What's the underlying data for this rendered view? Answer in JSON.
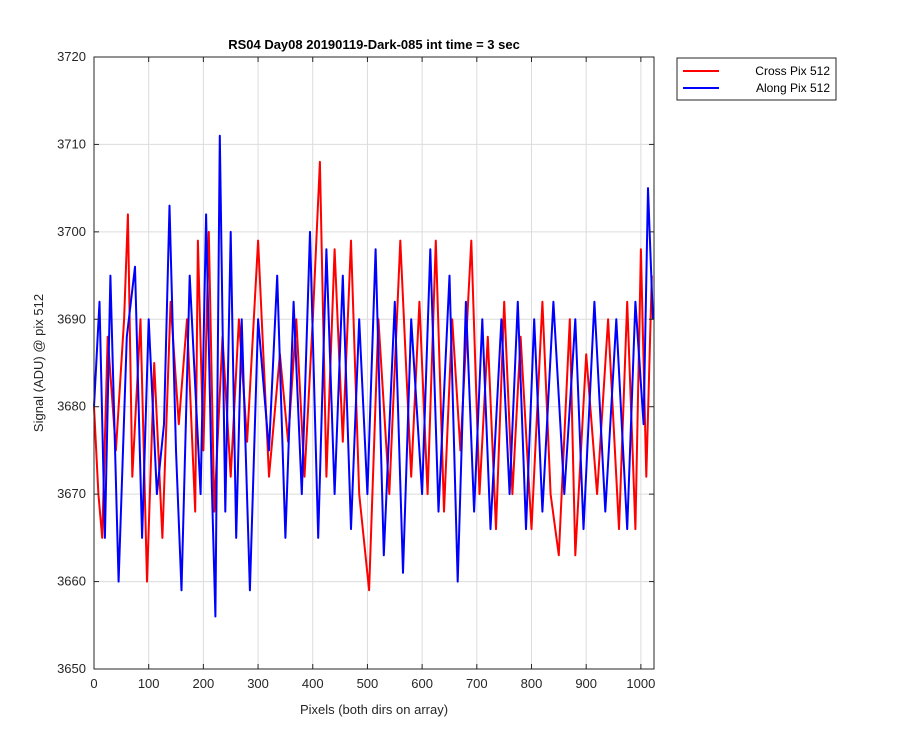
{
  "chart_data": {
    "type": "line",
    "title": "RS04 Day08 20190119-Dark-085 int time = 3 sec",
    "xlabel": "Pixels (both dirs on array)",
    "ylabel": "Signal (ADU) @ pix 512",
    "xlim": [
      0,
      1024
    ],
    "ylim": [
      3650,
      3720
    ],
    "xticks": [
      0,
      100,
      200,
      300,
      400,
      500,
      600,
      700,
      800,
      900,
      1000
    ],
    "yticks": [
      3650,
      3660,
      3670,
      3680,
      3690,
      3700,
      3710,
      3720
    ],
    "grid": true,
    "legend_position": "outside-top-right",
    "series": [
      {
        "name": "Cross Pix 512",
        "color": "#ff0000",
        "x": [
          0,
          8,
          15,
          25,
          40,
          55,
          62,
          70,
          85,
          97,
          110,
          125,
          140,
          155,
          170,
          185,
          190,
          200,
          210,
          220,
          235,
          250,
          265,
          280,
          300,
          320,
          340,
          355,
          370,
          385,
          400,
          413,
          425,
          440,
          455,
          470,
          485,
          503,
          520,
          540,
          560,
          580,
          595,
          610,
          625,
          640,
          655,
          670,
          690,
          705,
          720,
          735,
          750,
          765,
          780,
          800,
          820,
          835,
          850,
          870,
          880,
          900,
          920,
          940,
          960,
          975,
          990,
          1000,
          1010,
          1020
        ],
        "y": [
          3680,
          3670,
          3665,
          3688,
          3675,
          3690,
          3702,
          3672,
          3690,
          3660,
          3685,
          3665,
          3692,
          3678,
          3690,
          3668,
          3699,
          3675,
          3700,
          3668,
          3688,
          3672,
          3690,
          3676,
          3699,
          3672,
          3686,
          3676,
          3690,
          3672,
          3690,
          3708,
          3672,
          3698,
          3676,
          3699,
          3670,
          3659,
          3690,
          3670,
          3699,
          3672,
          3692,
          3670,
          3699,
          3668,
          3690,
          3675,
          3699,
          3670,
          3688,
          3666,
          3692,
          3670,
          3688,
          3666,
          3692,
          3670,
          3663,
          3690,
          3663,
          3686,
          3670,
          3690,
          3666,
          3692,
          3666,
          3698,
          3672,
          3695
        ]
      },
      {
        "name": "Along Pix 512",
        "color": "#0000ff",
        "x": [
          0,
          10,
          20,
          30,
          45,
          60,
          75,
          88,
          100,
          115,
          128,
          138,
          150,
          160,
          175,
          195,
          205,
          215,
          222,
          230,
          240,
          250,
          260,
          270,
          285,
          300,
          320,
          335,
          350,
          365,
          380,
          395,
          410,
          425,
          440,
          455,
          470,
          485,
          500,
          515,
          530,
          550,
          565,
          580,
          600,
          615,
          630,
          650,
          665,
          680,
          695,
          710,
          725,
          745,
          760,
          775,
          790,
          805,
          820,
          840,
          860,
          880,
          895,
          915,
          935,
          955,
          975,
          990,
          1005,
          1013,
          1022
        ],
        "y": [
          3680,
          3692,
          3665,
          3695,
          3660,
          3688,
          3696,
          3665,
          3690,
          3670,
          3678,
          3703,
          3675,
          3659,
          3695,
          3670,
          3702,
          3672,
          3656,
          3711,
          3668,
          3700,
          3665,
          3690,
          3659,
          3690,
          3675,
          3695,
          3665,
          3692,
          3670,
          3700,
          3665,
          3698,
          3670,
          3695,
          3666,
          3690,
          3670,
          3698,
          3663,
          3692,
          3661,
          3690,
          3670,
          3698,
          3668,
          3695,
          3660,
          3692,
          3668,
          3690,
          3666,
          3690,
          3670,
          3692,
          3666,
          3690,
          3668,
          3692,
          3670,
          3690,
          3666,
          3692,
          3668,
          3690,
          3666,
          3692,
          3678,
          3705,
          3690
        ]
      }
    ]
  }
}
